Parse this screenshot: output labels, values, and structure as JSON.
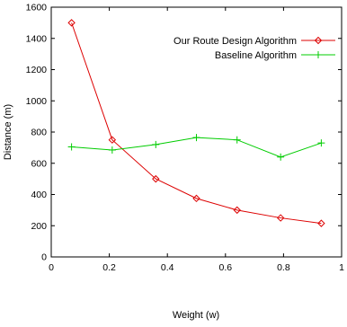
{
  "chart_data": {
    "type": "line",
    "xlabel": "Weight (w)",
    "ylabel": "Distance (m)",
    "xlim": [
      0,
      1
    ],
    "ylim": [
      0,
      1600
    ],
    "x_ticks": [
      0,
      0.2,
      0.4,
      0.6,
      0.8,
      1
    ],
    "x_tick_labels": [
      "0",
      "0.2",
      "0.4",
      "0.6",
      "0.8",
      "1"
    ],
    "y_ticks": [
      0,
      200,
      400,
      600,
      800,
      1000,
      1200,
      1400,
      1600
    ],
    "y_tick_labels": [
      "0",
      "200",
      "400",
      "600",
      "800",
      "1000",
      "1200",
      "1400",
      "1600"
    ],
    "grid": false,
    "legend_position": "top-right",
    "series": [
      {
        "name": "Our Route Design Algorithm",
        "color": "#dd0000",
        "marker": "diamond",
        "x": [
          0.07,
          0.21,
          0.36,
          0.5,
          0.64,
          0.79,
          0.93
        ],
        "y": [
          1500,
          750,
          500,
          375,
          300,
          250,
          215
        ]
      },
      {
        "name": "Baseline Algorithm",
        "color": "#00cc00",
        "marker": "plus",
        "x": [
          0.07,
          0.21,
          0.36,
          0.5,
          0.64,
          0.79,
          0.93
        ],
        "y": [
          705,
          685,
          720,
          765,
          750,
          640,
          730
        ]
      }
    ]
  }
}
